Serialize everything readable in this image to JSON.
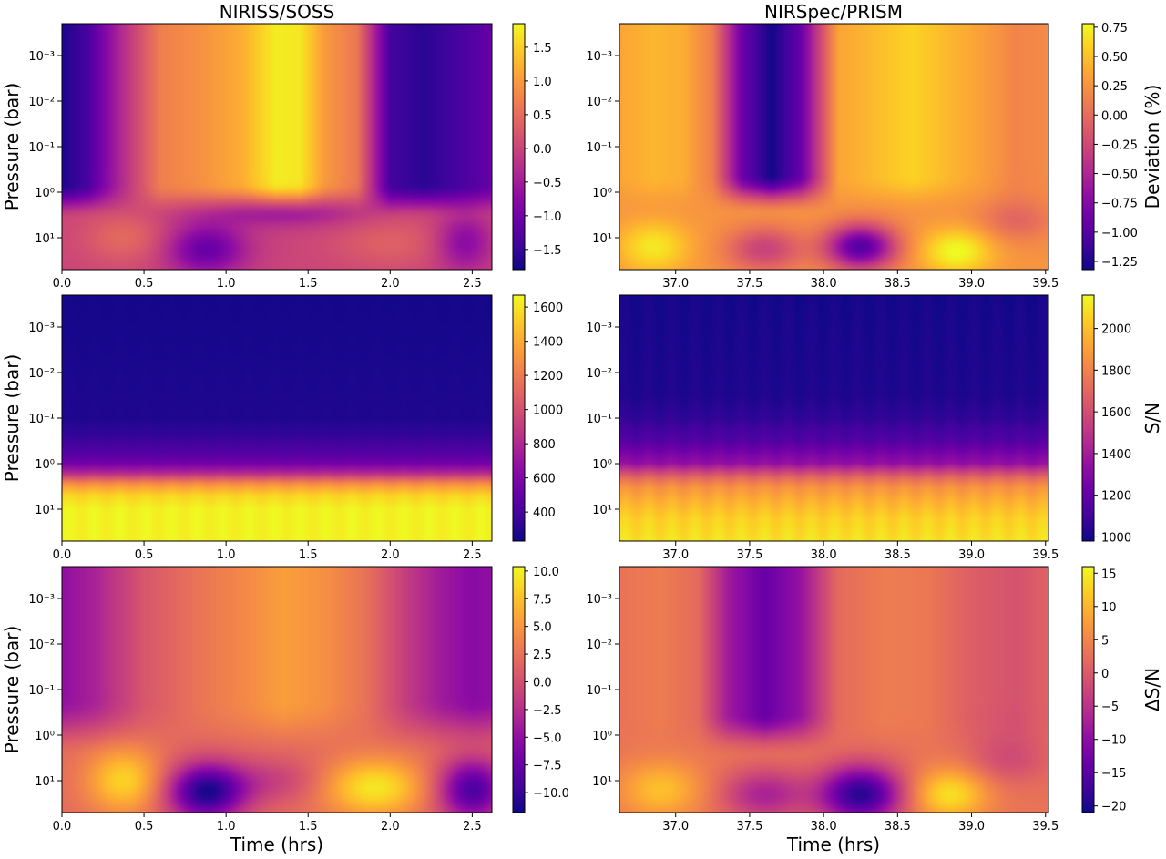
{
  "figure": {
    "columns": [
      {
        "title": "NIRISS/SOSS"
      },
      {
        "title": "NIRSpec/PRISM"
      }
    ],
    "row_colorbar_labels": [
      "Deviation (%)",
      "S/N",
      "ΔS/N"
    ],
    "ylabel": "Pressure (bar)",
    "xlabel": "Time (hrs)",
    "colormap": "plasma"
  },
  "chart_data": [
    {
      "type": "heatmap",
      "panel": "Deviation NIRISS/SOSS",
      "title": "NIRISS/SOSS",
      "ylabel": "Pressure (bar)",
      "xlabel": "",
      "xlim": [
        0.0,
        2.62
      ],
      "ylim_log10_pressure": [
        -3.7,
        1.7
      ],
      "y_scale": "log",
      "y_inverted": true,
      "xticks": [
        "0.0",
        "0.5",
        "1.0",
        "1.5",
        "2.0",
        "2.5"
      ],
      "xtick_values": [
        0,
        0.5,
        1.0,
        1.5,
        2.0,
        2.5
      ],
      "yticks": [
        "10⁻³",
        "10⁻²",
        "10⁻¹",
        "10⁰",
        "10¹"
      ],
      "ytick_values_log10": [
        -3,
        -2,
        -1,
        0,
        1
      ],
      "colorbar": {
        "label": "",
        "range": [
          -1.8,
          1.85
        ],
        "ticks": [
          "−1.5",
          "−1.0",
          "−0.5",
          "0.0",
          "0.5",
          "1.0",
          "1.5"
        ],
        "tick_values": [
          -1.5,
          -1.0,
          -0.5,
          0.0,
          0.5,
          1.0,
          1.5
        ]
      },
      "base": 0.0,
      "upper_profile": {
        "x": [
          0,
          0.15,
          0.35,
          0.6,
          0.85,
          1.1,
          1.3,
          1.45,
          1.6,
          1.8,
          2.0,
          2.2,
          2.4,
          2.62
        ],
        "v": [
          -1.7,
          -1.4,
          -0.4,
          0.7,
          0.9,
          1.2,
          1.75,
          1.7,
          1.0,
          0.6,
          -1.4,
          -1.6,
          -1.4,
          -1.1
        ]
      },
      "lower_value": 0.0,
      "transition_log10": [
        -0.2,
        0.6
      ],
      "blobs": [
        {
          "x": 0.38,
          "p": 1.0,
          "amp": 0.45,
          "sx": 0.18,
          "sp": 0.4
        },
        {
          "x": 0.88,
          "p": 1.25,
          "amp": -1.1,
          "sx": 0.17,
          "sp": 0.4
        },
        {
          "x": 1.35,
          "p": 0.4,
          "amp": -0.6,
          "sx": 0.35,
          "sp": 0.25
        },
        {
          "x": 2.0,
          "p": 1.1,
          "amp": 0.35,
          "sx": 0.25,
          "sp": 0.4
        },
        {
          "x": 2.45,
          "p": 1.1,
          "amp": -0.8,
          "sx": 0.12,
          "sp": 0.45
        }
      ]
    },
    {
      "type": "heatmap",
      "panel": "Deviation NIRSpec/PRISM",
      "title": "NIRSpec/PRISM",
      "ylabel": "",
      "xlabel": "",
      "xlim": [
        36.62,
        39.52
      ],
      "ylim_log10_pressure": [
        -3.7,
        1.7
      ],
      "y_scale": "log",
      "y_inverted": true,
      "xticks": [
        "37.0",
        "37.5",
        "38.0",
        "38.5",
        "39.0",
        "39.5"
      ],
      "xtick_values": [
        37.0,
        37.5,
        38.0,
        38.5,
        39.0,
        39.5
      ],
      "yticks": [
        "10⁻³",
        "10⁻²",
        "10⁻¹",
        "10⁰",
        "10¹"
      ],
      "ytick_values_log10": [
        -3,
        -2,
        -1,
        0,
        1
      ],
      "colorbar": {
        "label": "Deviation (%)",
        "range": [
          -1.32,
          0.78
        ],
        "ticks": [
          "−1.25",
          "−1.00",
          "−0.75",
          "−0.50",
          "−0.25",
          "0.00",
          "0.25",
          "0.50",
          "0.75"
        ],
        "tick_values": [
          -1.25,
          -1.0,
          -0.75,
          -0.5,
          -0.25,
          0.0,
          0.25,
          0.5,
          0.75
        ]
      },
      "base": 0.0,
      "upper_profile": {
        "x": [
          36.62,
          36.85,
          37.05,
          37.25,
          37.45,
          37.65,
          37.85,
          38.1,
          38.4,
          38.6,
          38.85,
          39.1,
          39.3,
          39.52
        ],
        "v": [
          0.35,
          0.45,
          0.4,
          0.1,
          -0.9,
          -1.3,
          -0.9,
          0.35,
          0.5,
          0.6,
          0.45,
          0.3,
          0.15,
          0.2
        ]
      },
      "lower_value": 0.25,
      "transition_log10": [
        -0.4,
        0.5
      ],
      "blobs": [
        {
          "x": 36.85,
          "p": 1.2,
          "amp": 0.45,
          "sx": 0.17,
          "sp": 0.4
        },
        {
          "x": 37.6,
          "p": 1.25,
          "amp": -0.55,
          "sx": 0.18,
          "sp": 0.35
        },
        {
          "x": 38.25,
          "p": 1.2,
          "amp": -1.25,
          "sx": 0.17,
          "sp": 0.35
        },
        {
          "x": 38.9,
          "p": 1.3,
          "amp": 0.55,
          "sx": 0.17,
          "sp": 0.35
        },
        {
          "x": 39.3,
          "p": 0.6,
          "amp": -0.3,
          "sx": 0.18,
          "sp": 0.35
        }
      ]
    },
    {
      "type": "heatmap",
      "panel": "S/N NIRISS/SOSS",
      "title": "",
      "ylabel": "Pressure (bar)",
      "xlabel": "",
      "xlim": [
        0.0,
        2.62
      ],
      "ylim_log10_pressure": [
        -3.7,
        1.7
      ],
      "y_scale": "log",
      "y_inverted": true,
      "xticks": [
        "0.0",
        "0.5",
        "1.0",
        "1.5",
        "2.0",
        "2.5"
      ],
      "xtick_values": [
        0,
        0.5,
        1.0,
        1.5,
        2.0,
        2.5
      ],
      "yticks": [
        "10⁻³",
        "10⁻²",
        "10⁻¹",
        "10⁰",
        "10¹"
      ],
      "ytick_values_log10": [
        -3,
        -2,
        -1,
        0,
        1
      ],
      "colorbar": {
        "label": "",
        "range": [
          230,
          1670
        ],
        "ticks": [
          "400",
          "600",
          "800",
          "1000",
          "1200",
          "1400",
          "1600"
        ],
        "tick_values": [
          400,
          600,
          800,
          1000,
          1200,
          1400,
          1600
        ]
      },
      "base": 250,
      "profile_vs_log10_pressure": {
        "log10p": [
          -3.7,
          -1.0,
          -0.6,
          -0.2,
          0.0,
          0.2,
          0.45,
          0.7,
          1.0,
          1.7
        ],
        "v": [
          250,
          280,
          340,
          450,
          560,
          800,
          1300,
          1550,
          1650,
          1650
        ]
      }
    },
    {
      "type": "heatmap",
      "panel": "S/N NIRSpec/PRISM",
      "title": "",
      "ylabel": "",
      "xlabel": "",
      "xlim": [
        36.62,
        39.52
      ],
      "ylim_log10_pressure": [
        -3.7,
        1.7
      ],
      "y_scale": "log",
      "y_inverted": true,
      "xticks": [
        "37.0",
        "37.5",
        "38.0",
        "38.5",
        "39.0",
        "39.5"
      ],
      "xtick_values": [
        37.0,
        37.5,
        38.0,
        38.5,
        39.0,
        39.5
      ],
      "yticks": [
        "10⁻³",
        "10⁻²",
        "10⁻¹",
        "10⁰",
        "10¹"
      ],
      "ytick_values_log10": [
        -3,
        -2,
        -1,
        0,
        1
      ],
      "colorbar": {
        "label": "S/N",
        "range": [
          980,
          2160
        ],
        "ticks": [
          "1000",
          "1200",
          "1400",
          "1600",
          "1800",
          "2000"
        ],
        "tick_values": [
          1000,
          1200,
          1400,
          1600,
          1800,
          2000
        ]
      },
      "base": 1000,
      "profile_vs_log10_pressure": {
        "log10p": [
          -3.7,
          -1.5,
          -1.0,
          -0.5,
          0.0,
          0.3,
          0.5,
          0.8,
          1.2,
          1.7
        ],
        "v": [
          1000,
          1020,
          1060,
          1150,
          1350,
          1700,
          1850,
          1950,
          2050,
          2100
        ]
      }
    },
    {
      "type": "heatmap",
      "panel": "ΔS/N NIRISS/SOSS",
      "title": "",
      "ylabel": "Pressure (bar)",
      "xlabel": "Time (hrs)",
      "xlim": [
        0.0,
        2.62
      ],
      "ylim_log10_pressure": [
        -3.7,
        1.7
      ],
      "y_scale": "log",
      "y_inverted": true,
      "xticks": [
        "0.0",
        "0.5",
        "1.0",
        "1.5",
        "2.0",
        "2.5"
      ],
      "xtick_values": [
        0,
        0.5,
        1.0,
        1.5,
        2.0,
        2.5
      ],
      "yticks": [
        "10⁻³",
        "10⁻²",
        "10⁻¹",
        "10⁰",
        "10¹"
      ],
      "ytick_values_log10": [
        -3,
        -2,
        -1,
        0,
        1
      ],
      "colorbar": {
        "label": "",
        "range": [
          -11.8,
          10.4
        ],
        "ticks": [
          "−10.0",
          "−7.5",
          "−5.0",
          "−2.5",
          "0.0",
          "2.5",
          "5.0",
          "7.5",
          "10.0"
        ],
        "tick_values": [
          -10.0,
          -7.5,
          -5.0,
          -2.5,
          0.0,
          2.5,
          5.0,
          7.5,
          10.0
        ]
      },
      "base": 0.0,
      "upper_profile": {
        "x": [
          0,
          0.2,
          0.5,
          0.8,
          1.1,
          1.35,
          1.6,
          1.85,
          2.1,
          2.3,
          2.5,
          2.62
        ],
        "v": [
          -5.0,
          -3.5,
          0.5,
          2.5,
          4.0,
          5.5,
          4.5,
          2.5,
          -1.5,
          -4.0,
          -5.5,
          -5.0
        ]
      },
      "lower_value": 2.0,
      "transition_log10": [
        -0.8,
        0.5
      ],
      "blobs": [
        {
          "x": 0.38,
          "p": 1.0,
          "amp": 6.5,
          "sx": 0.16,
          "sp": 0.5
        },
        {
          "x": 0.88,
          "p": 1.25,
          "amp": -13.0,
          "sx": 0.17,
          "sp": 0.45
        },
        {
          "x": 1.9,
          "p": 1.15,
          "amp": 7.5,
          "sx": 0.22,
          "sp": 0.45
        },
        {
          "x": 2.5,
          "p": 1.2,
          "amp": -11.0,
          "sx": 0.15,
          "sp": 0.5
        },
        {
          "x": 1.3,
          "p": 1.0,
          "amp": -3.0,
          "sx": 0.22,
          "sp": 0.35
        }
      ]
    },
    {
      "type": "heatmap",
      "panel": "ΔS/N NIRSpec/PRISM",
      "title": "",
      "ylabel": "",
      "xlabel": "Time (hrs)",
      "xlim": [
        36.62,
        39.52
      ],
      "ylim_log10_pressure": [
        -3.7,
        1.7
      ],
      "y_scale": "log",
      "y_inverted": true,
      "xticks": [
        "37.0",
        "37.5",
        "38.0",
        "38.5",
        "39.0",
        "39.5"
      ],
      "xtick_values": [
        37.0,
        37.5,
        38.0,
        38.5,
        39.0,
        39.5
      ],
      "yticks": [
        "10⁻³",
        "10⁻²",
        "10⁻¹",
        "10⁰",
        "10¹"
      ],
      "ytick_values_log10": [
        -3,
        -2,
        -1,
        0,
        1
      ],
      "colorbar": {
        "label": "ΔS/N",
        "range": [
          -21,
          16
        ],
        "ticks": [
          "−20",
          "−15",
          "−10",
          "−5",
          "0",
          "5",
          "10",
          "15"
        ],
        "tick_values": [
          -20,
          -15,
          -10,
          -5,
          0,
          5,
          10,
          15
        ]
      },
      "base": 0.0,
      "upper_profile": {
        "x": [
          36.62,
          36.9,
          37.15,
          37.35,
          37.6,
          37.85,
          38.1,
          38.4,
          38.7,
          39.0,
          39.3,
          39.52
        ],
        "v": [
          3.0,
          4.0,
          2.0,
          -8.0,
          -14.0,
          -9.0,
          2.0,
          4.0,
          3.5,
          0.5,
          -1.0,
          1.0
        ]
      },
      "lower_value": 3.0,
      "transition_log10": [
        -0.5,
        0.5
      ],
      "blobs": [
        {
          "x": 36.9,
          "p": 1.2,
          "amp": 8.0,
          "sx": 0.2,
          "sp": 0.45
        },
        {
          "x": 37.6,
          "p": 1.3,
          "amp": -10.0,
          "sx": 0.2,
          "sp": 0.4
        },
        {
          "x": 38.25,
          "p": 1.3,
          "amp": -22.0,
          "sx": 0.2,
          "sp": 0.45
        },
        {
          "x": 38.85,
          "p": 1.3,
          "amp": 11.0,
          "sx": 0.18,
          "sp": 0.4
        },
        {
          "x": 39.25,
          "p": 0.5,
          "amp": -5.0,
          "sx": 0.2,
          "sp": 0.4
        }
      ]
    }
  ]
}
